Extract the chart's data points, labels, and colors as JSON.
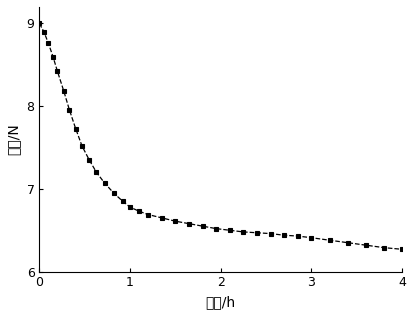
{
  "x": [
    0,
    0.05,
    0.1,
    0.15,
    0.2,
    0.27,
    0.33,
    0.4,
    0.47,
    0.55,
    0.63,
    0.72,
    0.82,
    0.92,
    1.0,
    1.1,
    1.2,
    1.35,
    1.5,
    1.65,
    1.8,
    1.95,
    2.1,
    2.25,
    2.4,
    2.55,
    2.7,
    2.85,
    3.0,
    3.2,
    3.4,
    3.6,
    3.8,
    4.0
  ],
  "y": [
    9.0,
    8.9,
    8.76,
    8.6,
    8.42,
    8.18,
    7.96,
    7.73,
    7.52,
    7.35,
    7.2,
    7.07,
    6.95,
    6.85,
    6.78,
    6.73,
    6.69,
    6.65,
    6.61,
    6.58,
    6.55,
    6.52,
    6.5,
    6.48,
    6.47,
    6.46,
    6.44,
    6.43,
    6.41,
    6.38,
    6.35,
    6.32,
    6.29,
    6.27
  ],
  "xlim": [
    0,
    4
  ],
  "ylim": [
    6,
    9.2
  ],
  "xticks": [
    0,
    1,
    2,
    3,
    4
  ],
  "yticks": [
    6,
    7,
    8,
    9
  ],
  "xlabel": "时间/h",
  "ylabel": "压力/N",
  "line_color": "#000000",
  "marker": "s",
  "markersize": 3,
  "linestyle": "--",
  "linewidth": 0.9,
  "background_color": "#ffffff",
  "figsize": [
    4.13,
    3.16
  ],
  "dpi": 100
}
